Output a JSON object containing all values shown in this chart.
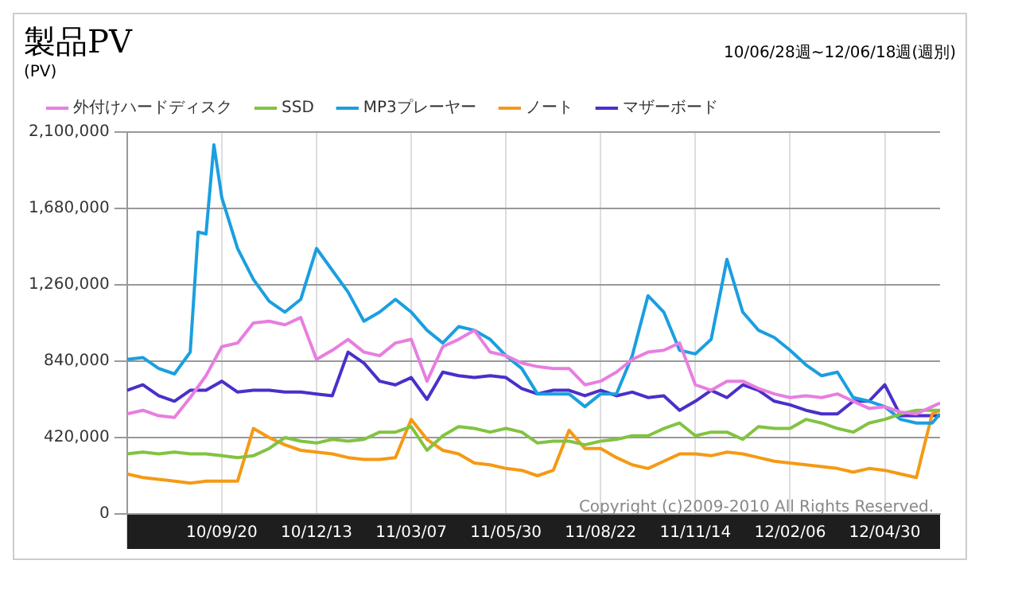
{
  "chart_data": {
    "type": "line",
    "title": "製品PV",
    "subtitle": "10/06/28週~12/06/18週(週別)",
    "ylabel": "(PV)",
    "x": [
      "2010-06-28",
      "2010-07-12",
      "2010-07-26",
      "2010-08-09",
      "2010-08-23",
      "2010-09-06",
      "2010-09-20",
      "2010-10-04",
      "2010-10-18",
      "2010-11-01",
      "2010-11-15",
      "2010-11-29",
      "2010-12-13",
      "2010-12-27",
      "2011-01-10",
      "2011-01-24",
      "2011-02-07",
      "2011-02-21",
      "2011-03-07",
      "2011-03-21",
      "2011-04-04",
      "2011-04-18",
      "2011-05-02",
      "2011-05-16",
      "2011-05-30",
      "2011-06-13",
      "2011-06-27",
      "2011-07-11",
      "2011-07-25",
      "2011-08-08",
      "2011-08-22",
      "2011-09-05",
      "2011-09-19",
      "2011-10-03",
      "2011-10-17",
      "2011-10-31",
      "2011-11-14",
      "2011-11-28",
      "2011-12-12",
      "2011-12-26",
      "2012-01-09",
      "2012-01-23",
      "2012-02-06",
      "2012-02-20",
      "2012-03-05",
      "2012-03-19",
      "2012-04-02",
      "2012-04-16",
      "2012-04-30",
      "2012-05-14",
      "2012-05-28",
      "2012-06-11",
      "2012-06-18"
    ],
    "series": [
      {
        "name": "外付けハードディスク",
        "color": "#e87ee0",
        "values": [
          550000,
          570000,
          540000,
          530000,
          640000,
          760000,
          920000,
          940000,
          1050000,
          1060000,
          1040000,
          1080000,
          850000,
          900000,
          960000,
          890000,
          870000,
          940000,
          960000,
          730000,
          920000,
          960000,
          1010000,
          890000,
          870000,
          830000,
          810000,
          800000,
          800000,
          710000,
          730000,
          780000,
          850000,
          890000,
          900000,
          940000,
          710000,
          680000,
          730000,
          730000,
          690000,
          660000,
          640000,
          650000,
          640000,
          660000,
          620000,
          580000,
          590000,
          560000,
          550000,
          590000,
          610000
        ]
      },
      {
        "name": "SSD",
        "color": "#82c341",
        "values": [
          330000,
          340000,
          330000,
          340000,
          330000,
          330000,
          320000,
          310000,
          320000,
          360000,
          420000,
          400000,
          390000,
          410000,
          400000,
          410000,
          450000,
          450000,
          480000,
          350000,
          430000,
          480000,
          470000,
          450000,
          470000,
          450000,
          390000,
          400000,
          400000,
          380000,
          400000,
          410000,
          430000,
          430000,
          470000,
          500000,
          430000,
          450000,
          450000,
          410000,
          480000,
          470000,
          470000,
          520000,
          500000,
          470000,
          450000,
          500000,
          520000,
          550000,
          570000,
          570000,
          570000
        ]
      },
      {
        "name": "MP3プレーヤー",
        "color": "#1a9fe0",
        "x": [
          "2010-06-28",
          "2010-07-12",
          "2010-07-26",
          "2010-08-09",
          "2010-08-23",
          "2010-08-30",
          "2010-09-06",
          "2010-09-13",
          "2010-09-20",
          "2010-10-04",
          "2010-10-18",
          "2010-11-01",
          "2010-11-15",
          "2010-11-29",
          "2010-12-13",
          "2010-12-27",
          "2011-01-10",
          "2011-01-24",
          "2011-02-07",
          "2011-02-21",
          "2011-03-07",
          "2011-03-21",
          "2011-04-04",
          "2011-04-18",
          "2011-05-02",
          "2011-05-16",
          "2011-05-30",
          "2011-06-13",
          "2011-06-27",
          "2011-07-11",
          "2011-07-25",
          "2011-08-08",
          "2011-08-22",
          "2011-09-05",
          "2011-09-19",
          "2011-10-03",
          "2011-10-17",
          "2011-10-31",
          "2011-11-14",
          "2011-11-28",
          "2011-12-12",
          "2011-12-26",
          "2012-01-09",
          "2012-01-23",
          "2012-02-06",
          "2012-02-20",
          "2012-03-05",
          "2012-03-19",
          "2012-04-02",
          "2012-04-16",
          "2012-04-30",
          "2012-05-14",
          "2012-05-28",
          "2012-06-11",
          "2012-06-18"
        ],
        "values": [
          850000,
          860000,
          800000,
          770000,
          890000,
          1550000,
          1540000,
          2030000,
          1740000,
          1460000,
          1290000,
          1170000,
          1110000,
          1180000,
          1460000,
          1340000,
          1220000,
          1060000,
          1110000,
          1180000,
          1110000,
          1010000,
          940000,
          1030000,
          1010000,
          960000,
          870000,
          800000,
          660000,
          660000,
          660000,
          590000,
          660000,
          660000,
          870000,
          1200000,
          1110000,
          900000,
          880000,
          960000,
          1400000,
          1110000,
          1010000,
          970000,
          900000,
          820000,
          760000,
          780000,
          640000,
          620000,
          590000,
          520000,
          500000,
          500000,
          550000
        ]
      },
      {
        "name": "ノート",
        "color": "#f59a14",
        "values": [
          220000,
          200000,
          190000,
          180000,
          170000,
          180000,
          180000,
          180000,
          470000,
          420000,
          380000,
          350000,
          340000,
          330000,
          310000,
          300000,
          300000,
          310000,
          520000,
          410000,
          350000,
          330000,
          280000,
          270000,
          250000,
          240000,
          210000,
          240000,
          460000,
          360000,
          360000,
          310000,
          270000,
          250000,
          290000,
          330000,
          330000,
          320000,
          340000,
          330000,
          310000,
          290000,
          280000,
          270000,
          260000,
          250000,
          230000,
          250000,
          240000,
          220000,
          200000,
          550000,
          570000
        ]
      },
      {
        "name": "マザーボード",
        "color": "#4b2fc9",
        "values": [
          680000,
          710000,
          650000,
          620000,
          680000,
          680000,
          730000,
          670000,
          680000,
          680000,
          670000,
          670000,
          660000,
          650000,
          890000,
          830000,
          730000,
          710000,
          750000,
          630000,
          780000,
          760000,
          750000,
          760000,
          750000,
          690000,
          660000,
          680000,
          680000,
          650000,
          680000,
          650000,
          670000,
          640000,
          650000,
          570000,
          620000,
          680000,
          640000,
          710000,
          680000,
          620000,
          600000,
          570000,
          550000,
          550000,
          620000,
          620000,
          710000,
          540000,
          540000,
          540000,
          540000
        ]
      }
    ],
    "ylim": [
      0,
      2100000
    ],
    "yticks": [
      0,
      {
        "value": 420000,
        "label": "420,000"
      },
      {
        "value": 840000,
        "label": "840,000"
      },
      {
        "value": 1260000,
        "label": "1,260,000"
      },
      {
        "value": 1680000,
        "label": "1,680,000"
      },
      {
        "value": 2100000,
        "label": "2,100,000"
      }
    ],
    "xlim": [
      "2010-06-28",
      "2012-06-18"
    ],
    "xticks": [
      {
        "value": "2010-09-20",
        "label": "10/09/20"
      },
      {
        "value": "2010-12-13",
        "label": "10/12/13"
      },
      {
        "value": "2011-03-07",
        "label": "11/03/07"
      },
      {
        "value": "2011-05-30",
        "label": "11/05/30"
      },
      {
        "value": "2011-08-22",
        "label": "11/08/22"
      },
      {
        "value": "2011-11-14",
        "label": "11/11/14"
      },
      {
        "value": "2012-02-06",
        "label": "12/02/06"
      },
      {
        "value": "2012-04-30",
        "label": "12/04/30"
      }
    ],
    "grid": true,
    "legend": "top",
    "marker": "none",
    "line_style": "solid",
    "annotations": [
      "Copyright (c)2009-2010 All Rights Reserved."
    ]
  }
}
